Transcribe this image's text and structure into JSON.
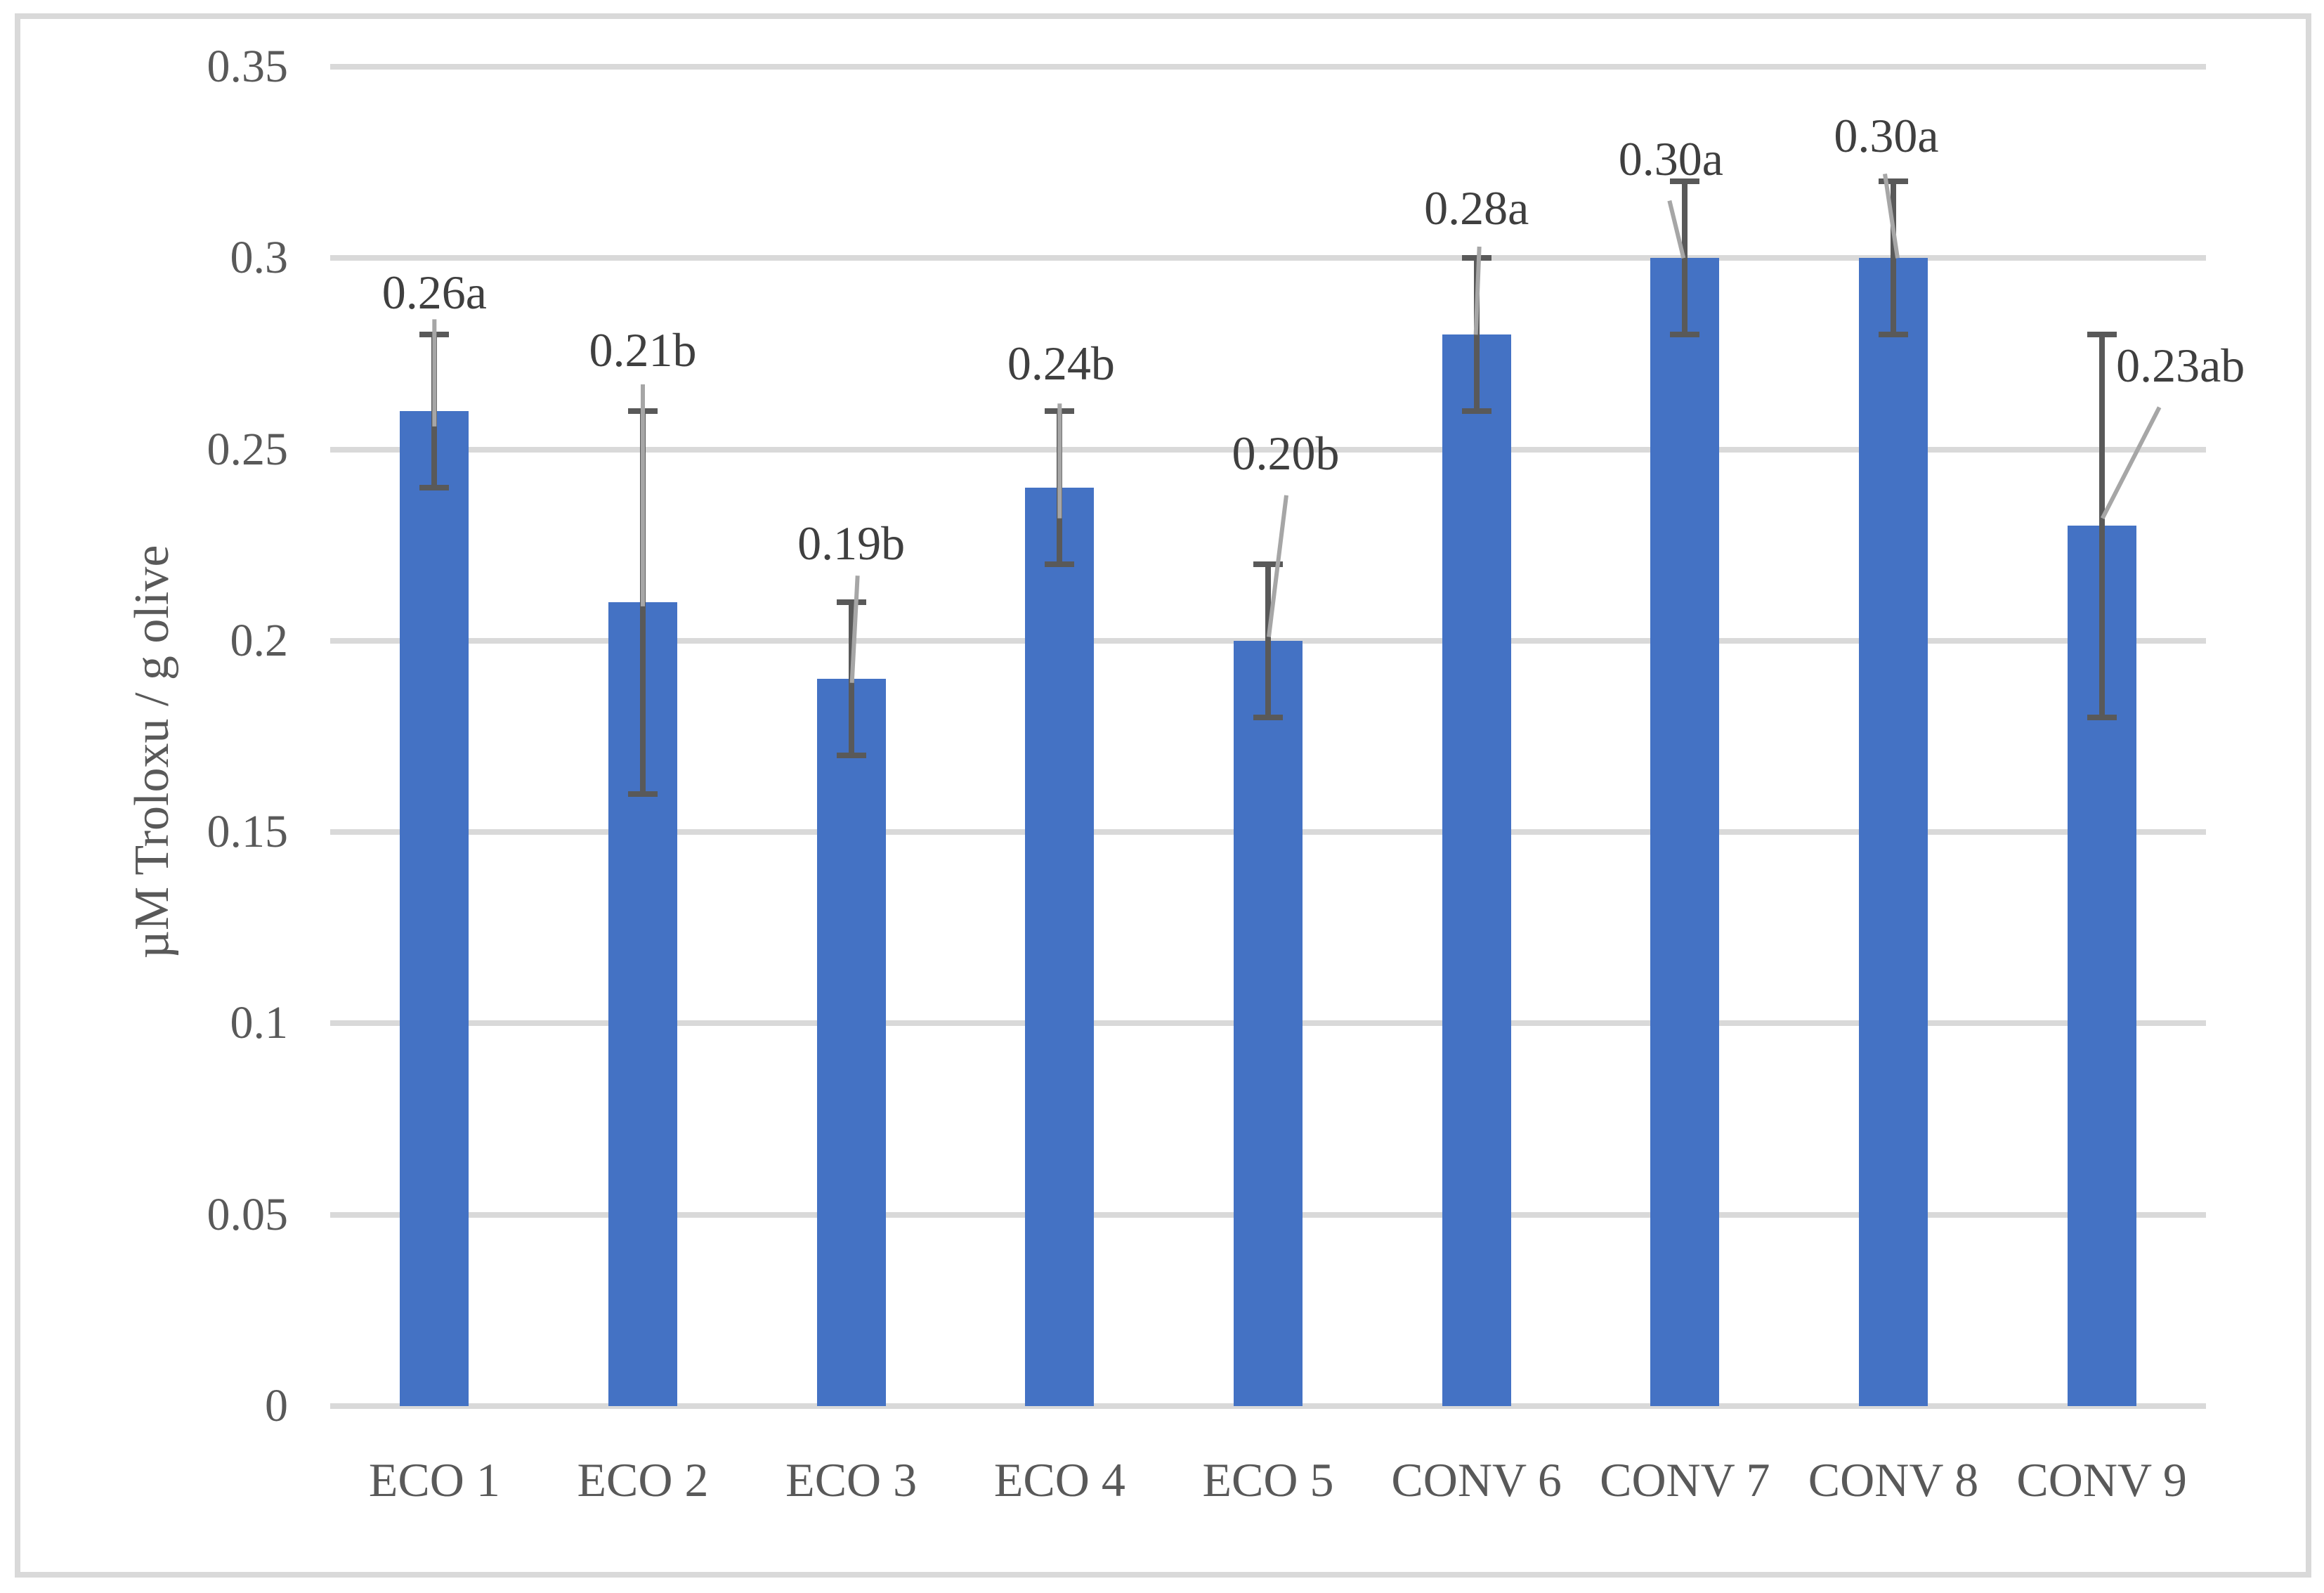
{
  "chart_data": {
    "type": "bar",
    "title": "",
    "ylabel": "µM Troloxu / g olive",
    "xlabel": "",
    "ylim": [
      0,
      0.35
    ],
    "grid": true,
    "legend_position": "none",
    "yticks": [
      {
        "v": 0,
        "label": "0"
      },
      {
        "v": 0.05,
        "label": "0.05"
      },
      {
        "v": 0.1,
        "label": "0.1"
      },
      {
        "v": 0.15,
        "label": "0.15"
      },
      {
        "v": 0.2,
        "label": "0.2"
      },
      {
        "v": 0.25,
        "label": "0.25"
      },
      {
        "v": 0.3,
        "label": "0.3"
      },
      {
        "v": 0.35,
        "label": "0.35"
      }
    ],
    "categories": [
      "ECO 1",
      "ECO 2",
      "ECO 3",
      "ECO 4",
      "ECO 5",
      "CONV 6",
      "CONV 7",
      "CONV 8",
      "CONV 9"
    ],
    "values": [
      0.26,
      0.21,
      0.19,
      0.24,
      0.2,
      0.28,
      0.3,
      0.3,
      0.23
    ],
    "data_labels": [
      "0.26a",
      "0.21b",
      "0.19b",
      "0.24b",
      "0.20b",
      "0.28a",
      "0.30a",
      "0.30a",
      "0.23ab"
    ],
    "error_low": [
      0.24,
      0.16,
      0.17,
      0.22,
      0.18,
      0.26,
      0.28,
      0.28,
      0.18
    ],
    "error_high": [
      0.28,
      0.26,
      0.21,
      0.26,
      0.22,
      0.3,
      0.32,
      0.32,
      0.28
    ],
    "annotations": [
      {
        "label_dx": 0,
        "label_v": 0.291,
        "leader": {
          "dx1": 0,
          "v1": 0.284,
          "dx2": 0,
          "v2": 0.256
        }
      },
      {
        "label_dx": 0,
        "label_v": 0.276,
        "leader": {
          "dx1": 0,
          "v1": 0.267,
          "dx2": 0,
          "v2": 0.209
        }
      },
      {
        "label_dx": 0,
        "label_v": 0.2255,
        "leader": {
          "dx1": 9,
          "v1": 0.217,
          "dx2": 1,
          "v2": 0.189
        }
      },
      {
        "label_dx": 2,
        "label_v": 0.2725,
        "leader": {
          "dx1": 0,
          "v1": 0.262,
          "dx2": 0,
          "v2": 0.232
        }
      },
      {
        "label_dx": 25,
        "label_v": 0.249,
        "leader": {
          "dx1": 26,
          "v1": 0.238,
          "dx2": 1,
          "v2": 0.201
        }
      },
      {
        "label_dx": 0,
        "label_v": 0.313,
        "leader": {
          "dx1": 4,
          "v1": 0.303,
          "dx2": -1,
          "v2": 0.28
        }
      },
      {
        "label_dx": -20,
        "label_v": 0.326,
        "leader": {
          "dx1": -22,
          "v1": 0.315,
          "dx2": -2,
          "v2": 0.3
        }
      },
      {
        "label_dx": -10,
        "label_v": 0.332,
        "leader": {
          "dx1": -12,
          "v1": 0.322,
          "dx2": 6,
          "v2": 0.3
        }
      },
      {
        "label_dx": 112,
        "label_v": 0.272,
        "leader": {
          "dx1": 82,
          "v1": 0.261,
          "dx2": 1,
          "v2": 0.232
        }
      }
    ],
    "colors": {
      "bar": "#4472C4",
      "error_bar": "#595959",
      "leader_line": "#A6A6A6",
      "gridline": "#D9D9D9",
      "frame_border": "#D9D9D9",
      "axis_text": "#595959",
      "data_label_text": "#3F3F3F",
      "background": "#FFFFFF"
    }
  }
}
